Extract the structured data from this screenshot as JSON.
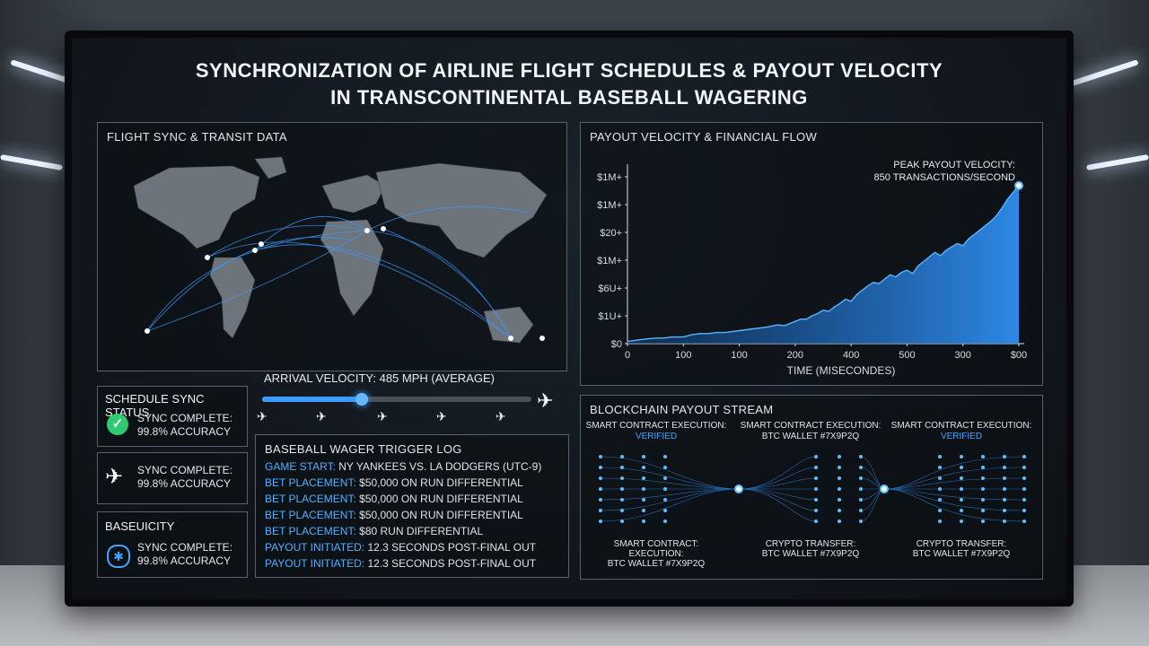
{
  "title": {
    "line1": "SYNCHRONIZATION OF AIRLINE FLIGHT SCHEDULES & PAYOUT VELOCITY",
    "line2": "IN TRANSCONTINENTAL BASEBALL WAGERING"
  },
  "flight_panel": {
    "label": "FLIGHT SYNC & TRANSIT DATA",
    "arrival_velocity": "ARRIVAL VELOCITY: 485 MPH (AVERAGE)",
    "progress": 0.37
  },
  "status_panels": [
    {
      "heading": "SCHEDULE SYNC STATUS",
      "line1": "SYNC COMPLETE:",
      "line2": "99.8% ACCURACY",
      "icon": "check-icon"
    },
    {
      "heading": "",
      "line1": "SYNC COMPLETE:",
      "line2": "99.8% ACCURACY",
      "icon": "airplane-icon"
    },
    {
      "heading": "BASEUICITY",
      "line1": "SYNC COMPLETE:",
      "line2": "99.8% ACCURACY",
      "icon": "compass-icon"
    }
  ],
  "wager_log": {
    "label": "BASEBALL WAGER TRIGGER LOG",
    "lines": [
      {
        "key": "GAME START:",
        "value": "NY YANKEES VS. LA DODGERS (UTC-9)"
      },
      {
        "key": "BET PLACEMENT:",
        "value": "$50,000 ON RUN DIFFERENTIAL"
      },
      {
        "key": "BET PLACEMENT:",
        "value": "$50,000 ON RUN DIFFERENTIAL"
      },
      {
        "key": "BET PLACEMENT:",
        "value": "$50,000 ON RUN DIFFERENTIAL"
      },
      {
        "key": "BET PLACEMENT:",
        "value": "$80 RUN DIFFERENTIAL"
      },
      {
        "key": "PAYOUT INITIATED:",
        "value": "12.3 SECONDS POST-FINAL OUT"
      },
      {
        "key": "PAYOUT INITIATED:",
        "value": "12.3 SECONDS POST-FINAL OUT"
      }
    ]
  },
  "payout_panel": {
    "label": "PAYOUT VELOCITY & FINANCIAL FLOW",
    "peak_line1": "PEAK PAYOUT VELOCITY:",
    "peak_line2": "850 TRANSACTIONS/SECOND"
  },
  "chart_data": {
    "type": "area",
    "title": "",
    "xlabel": "TIME (MISECONDES)",
    "ylabel": "",
    "x_tick_labels": [
      "0",
      "100",
      "100",
      "200",
      "400",
      "500",
      "300",
      "$00"
    ],
    "y_tick_labels": [
      "$0",
      "$1U+",
      "$6U+",
      "$1M+",
      "$20+",
      "$1M+",
      "$1M+"
    ],
    "x": [
      0,
      30,
      60,
      100,
      130,
      160,
      200,
      230,
      260,
      290,
      320,
      350,
      380,
      410,
      440,
      470,
      500,
      520,
      540,
      560,
      580,
      600,
      620,
      640,
      660,
      680,
      700,
      720,
      740,
      760,
      780,
      800,
      820,
      840,
      860,
      880,
      900,
      920,
      940,
      960,
      980,
      1000,
      1020,
      1040,
      1060,
      1080,
      1100,
      1120,
      1140,
      1160,
      1180,
      1200,
      1220,
      1240,
      1260,
      1280,
      1300,
      1320,
      1340,
      1360,
      1380,
      1400
    ],
    "y": [
      2,
      3,
      4,
      5,
      5,
      6,
      6,
      8,
      9,
      9,
      10,
      10,
      11,
      12,
      13,
      14,
      15,
      16,
      17,
      16,
      18,
      20,
      22,
      22,
      25,
      27,
      30,
      29,
      33,
      36,
      40,
      38,
      44,
      48,
      52,
      55,
      54,
      58,
      62,
      60,
      64,
      66,
      63,
      70,
      74,
      78,
      82,
      79,
      84,
      87,
      90,
      88,
      94,
      98,
      102,
      106,
      110,
      115,
      122,
      130,
      136,
      142
    ],
    "ylim": [
      0,
      150
    ],
    "xlim": [
      0,
      1400
    ],
    "grid": false,
    "color": "#2f8ef0"
  },
  "blockchain_panel": {
    "label": "BLOCKCHAIN PAYOUT STREAM",
    "top_nodes": [
      {
        "title": "SMART CONTRACT EXECUTION:",
        "sub": "VERIFIED",
        "sub_color": "#3fa6ff"
      },
      {
        "title": "SMART CONTRACT EXECUTION:",
        "sub": "BTC WALLET #7X9P2Q",
        "sub_color": "#e0e5eb"
      },
      {
        "title": "SMART CONTRACT EXECUTION:",
        "sub": "VERIFIED",
        "sub_color": "#3fa6ff"
      }
    ],
    "bottom_nodes": [
      {
        "l1": "SMART CONTRACT:",
        "l2": "EXECUTION:",
        "l3": "BTC WALLET #7X9P2Q"
      },
      {
        "l1": "CRYPTO TRANSFER:",
        "l2": "BTC WALLET #7X9P2Q",
        "l3": ""
      },
      {
        "l1": "CRYPTO TRANSFER:",
        "l2": "BTC WALLET #7X9P2Q",
        "l3": ""
      }
    ]
  }
}
